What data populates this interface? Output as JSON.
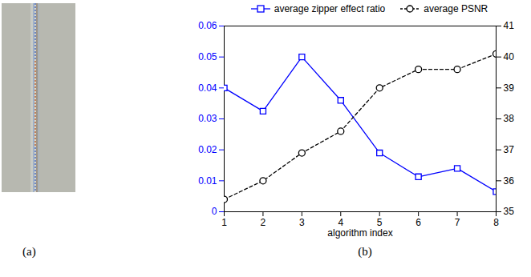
{
  "captions": {
    "a": "(a)",
    "b": "(b)"
  },
  "chart_data": {
    "type": "line",
    "xlabel": "algorithm index",
    "x": [
      1,
      2,
      3,
      4,
      5,
      6,
      7,
      8
    ],
    "xlim": [
      1,
      8
    ],
    "xticks": [
      1,
      2,
      3,
      4,
      5,
      6,
      7,
      8
    ],
    "ylim": [
      0,
      0.06
    ],
    "yticks": [
      0,
      0.01,
      0.02,
      0.03,
      0.04,
      0.05,
      0.06
    ],
    "y2lim": [
      35,
      41
    ],
    "y2ticks": [
      35,
      36,
      37,
      38,
      39,
      40,
      41
    ],
    "grid": false,
    "legend": "top",
    "series": [
      {
        "name": "average zipper effect ratio",
        "color": "#0000ff",
        "marker": "square",
        "line_style": "solid",
        "values": [
          0.04,
          0.0325,
          0.05,
          0.036,
          0.019,
          0.0113,
          0.014,
          0.0065
        ]
      },
      {
        "name": "average PSNR",
        "color": "#000000",
        "marker": "circle",
        "line_style": "dashed",
        "axis": "y2",
        "values": [
          35.4,
          36.0,
          36.9,
          37.6,
          39.0,
          39.6,
          39.6,
          40.1
        ]
      }
    ]
  }
}
